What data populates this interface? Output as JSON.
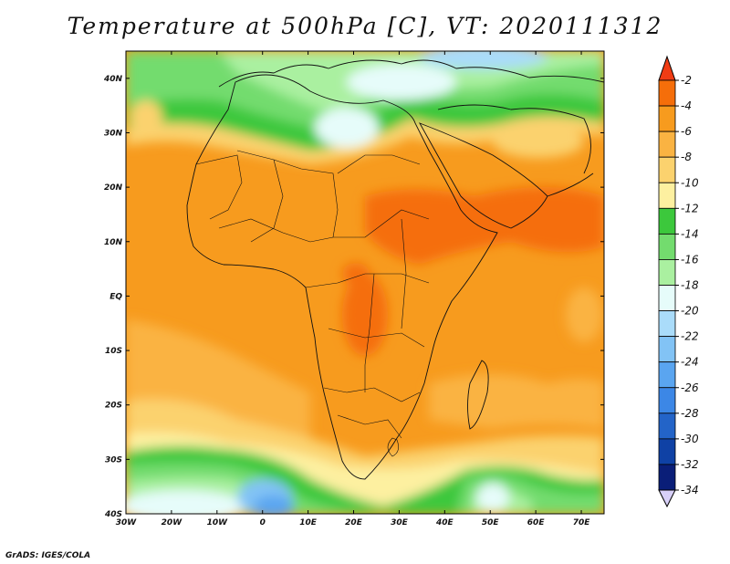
{
  "title": "Temperature at 500hPa [C], VT: 2020111312",
  "credit": "GrADS: IGES/COLA",
  "map": {
    "lon_ticks": [
      "30W",
      "20W",
      "10W",
      "0",
      "10E",
      "20E",
      "30E",
      "40E",
      "50E",
      "60E",
      "70E"
    ],
    "lat_ticks": [
      "40N",
      "30N",
      "20N",
      "10N",
      "EQ",
      "10S",
      "20S",
      "30S",
      "40S"
    ],
    "lon_range": [
      -30,
      75
    ],
    "lat_range": [
      -40,
      45
    ]
  },
  "colorbar": {
    "labels": [
      "-2",
      "-4",
      "-6",
      "-8",
      "-10",
      "-12",
      "-14",
      "-16",
      "-18",
      "-20",
      "-22",
      "-24",
      "-26",
      "-28",
      "-30",
      "-32",
      "-34"
    ],
    "colors": [
      "#f03c14",
      "#f56e0a",
      "#f79b1e",
      "#fab342",
      "#fbd26e",
      "#fdf0a0",
      "#3cc83c",
      "#73dc6e",
      "#aaf0a0",
      "#e6fcfa",
      "#aadcfa",
      "#82c3f5",
      "#5aa5f0",
      "#3c87e6",
      "#2364c8",
      "#0f41a5",
      "#0a1e78"
    ]
  }
}
